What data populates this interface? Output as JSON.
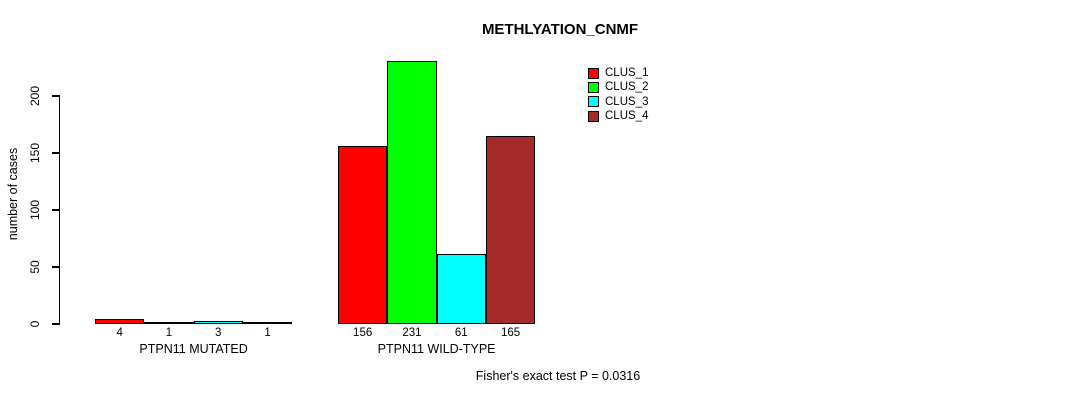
{
  "chart_data": {
    "type": "bar",
    "title": "METHLYATION_CNMF",
    "xlabel": "",
    "ylabel": "number of cases",
    "categories": [
      "PTPN11 MUTATED",
      "PTPN11 WILD-TYPE"
    ],
    "series": [
      {
        "name": "CLUS_1",
        "color": "#ff0000",
        "values": [
          4,
          156
        ]
      },
      {
        "name": "CLUS_2",
        "color": "#00ff00",
        "values": [
          1,
          231
        ]
      },
      {
        "name": "CLUS_3",
        "color": "#00ffff",
        "values": [
          3,
          61
        ]
      },
      {
        "name": "CLUS_4",
        "color": "#a52a2a",
        "values": [
          1,
          165
        ]
      }
    ],
    "bar_value_labels": [
      [
        4,
        1,
        3,
        1
      ],
      [
        156,
        231,
        61,
        165
      ]
    ],
    "yticks": [
      0,
      50,
      100,
      150,
      200
    ],
    "ylim": [
      0,
      231
    ],
    "grid": false,
    "legend_position": "top-right",
    "annotation": "Fisher's exact test P = 0.0316",
    "axis_color": "#000000",
    "background_color": "#ffffff"
  }
}
